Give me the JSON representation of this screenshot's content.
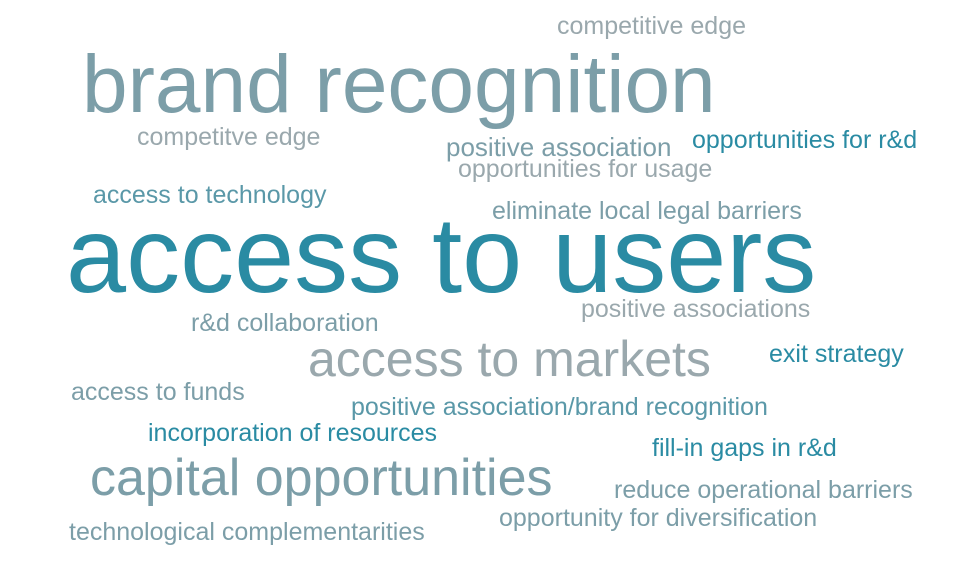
{
  "words": {
    "competitive_edge": "competitive edge",
    "brand_recognition": "brand recognition",
    "competitve_edge": "competitve edge",
    "positive_association": "positive association",
    "opportunities_rd": "opportunities for r&d",
    "opportunities_usage": "opportunities for usage",
    "access_technology": "access to technology",
    "eliminate_barriers": "eliminate local legal barriers",
    "access_users": "access to users",
    "positive_associations": "positive associations",
    "rd_collaboration": "r&d collaboration",
    "access_markets": "access to markets",
    "exit_strategy": "exit strategy",
    "access_funds": "access to funds",
    "positive_assoc_brand": "positive association/brand recognition",
    "incorporation": "incorporation of resources",
    "fill_in_gaps": "fill-in gaps in r&d",
    "capital_opportunities": "capital opportunities",
    "reduce_barriers": "reduce operational barriers",
    "opportunity_diversification": "opportunity for diversification",
    "technological_complementarities": "technological complementarities"
  },
  "colors": {
    "dark_teal": "#2a8ba3",
    "mid_teal": "#5a98a8",
    "slate": "#7c9ea8",
    "grey": "#9aa8ad"
  }
}
